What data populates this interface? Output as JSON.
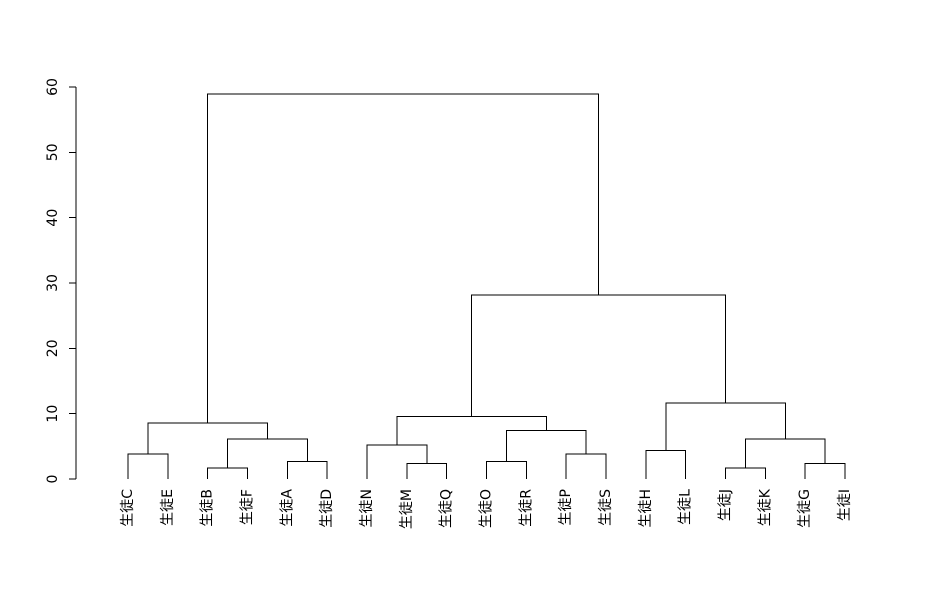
{
  "chart_data": {
    "type": "dendrogram",
    "title": "",
    "xlabel": "",
    "ylabel": "",
    "ylim": [
      0,
      60
    ],
    "y_ticks": [
      0,
      10,
      20,
      30,
      40,
      50,
      60
    ],
    "grid": false,
    "leaves": [
      "生徒C",
      "生徒E",
      "生徒B",
      "生徒F",
      "生徒A",
      "生徒D",
      "生徒N",
      "生徒M",
      "生徒Q",
      "生徒O",
      "生徒R",
      "生徒P",
      "生徒S",
      "生徒H",
      "生徒L",
      "生徒J",
      "生徒K",
      "生徒G",
      "生徒I"
    ],
    "merges": [
      {
        "left": "生徒C",
        "right": "生徒E",
        "height": 3.8
      },
      {
        "left": "生徒B",
        "right": "生徒F",
        "height": 1.7
      },
      {
        "left": "生徒A",
        "right": "生徒D",
        "height": 2.7
      },
      {
        "left": "m1",
        "right": "m2",
        "height": 6.1
      },
      {
        "left": "m0",
        "right": "m3",
        "height": 8.6
      },
      {
        "left": "生徒M",
        "right": "生徒Q",
        "height": 2.4
      },
      {
        "left": "生徒N",
        "right": "m5",
        "height": 5.2
      },
      {
        "left": "生徒O",
        "right": "生徒R",
        "height": 2.7
      },
      {
        "left": "生徒P",
        "right": "生徒S",
        "height": 3.8
      },
      {
        "left": "m7",
        "right": "m8",
        "height": 7.4
      },
      {
        "left": "m6",
        "right": "m9",
        "height": 9.6
      },
      {
        "left": "生徒H",
        "right": "生徒L",
        "height": 4.4
      },
      {
        "left": "生徒J",
        "right": "生徒K",
        "height": 1.7
      },
      {
        "left": "生徒G",
        "right": "生徒I",
        "height": 2.4
      },
      {
        "left": "m12",
        "right": "m13",
        "height": 6.1
      },
      {
        "left": "m11",
        "right": "m14",
        "height": 11.6
      },
      {
        "left": "m10",
        "right": "m15",
        "height": 28.2
      },
      {
        "left": "m4",
        "right": "m16",
        "height": 58.9
      }
    ]
  }
}
